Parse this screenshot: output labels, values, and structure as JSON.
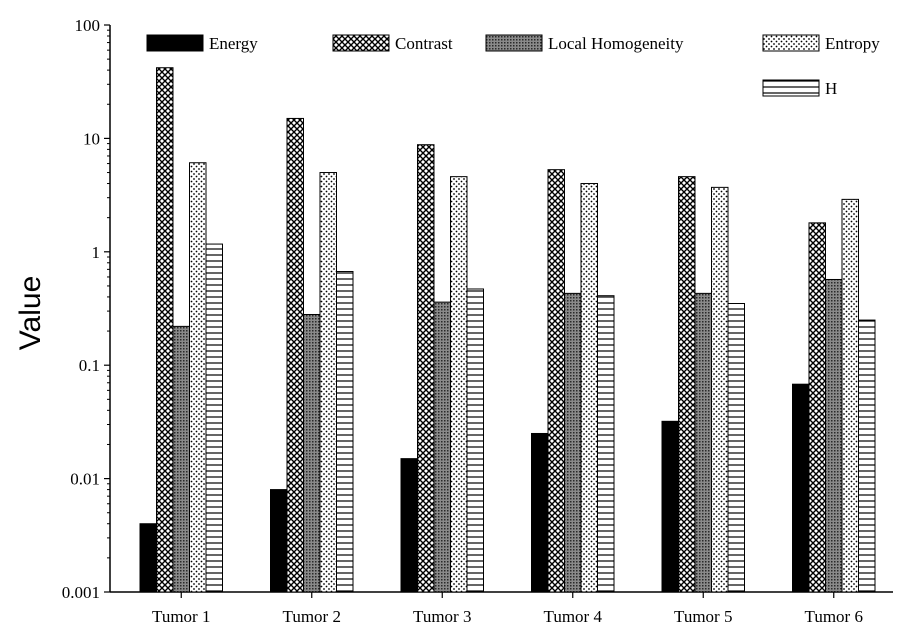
{
  "chart_data": {
    "type": "bar",
    "title": "",
    "xlabel": "",
    "ylabel": "Value",
    "yscale": "log",
    "ylim": [
      0.001,
      100
    ],
    "yticks": [
      "0.001",
      "0.01",
      "0.1",
      "1",
      "10",
      "100"
    ],
    "grid": false,
    "legend_position": "top",
    "categories": [
      "Tumor 1",
      "Tumor 2",
      "Tumor 3",
      "Tumor 4",
      "Tumor 5",
      "Tumor 6"
    ],
    "series": [
      {
        "name": "Energy",
        "pattern": "solid-black",
        "values": [
          0.004,
          0.008,
          0.015,
          0.025,
          0.032,
          0.068
        ]
      },
      {
        "name": "Contrast",
        "pattern": "crosshatch",
        "values": [
          42,
          15,
          8.8,
          5.3,
          4.6,
          1.8
        ]
      },
      {
        "name": "Local Homogeneity",
        "pattern": "dense-gray-dots",
        "values": [
          0.22,
          0.28,
          0.36,
          0.43,
          0.43,
          0.57
        ]
      },
      {
        "name": "Entropy",
        "pattern": "sparse-dots",
        "values": [
          6.1,
          5.0,
          4.6,
          4.0,
          3.7,
          2.9
        ]
      },
      {
        "name": "H",
        "pattern": "horizontal-lines",
        "values": [
          1.17,
          0.67,
          0.47,
          0.41,
          0.35,
          0.25
        ]
      }
    ],
    "colors": {
      "stroke": "#000000",
      "background": "#ffffff"
    }
  }
}
